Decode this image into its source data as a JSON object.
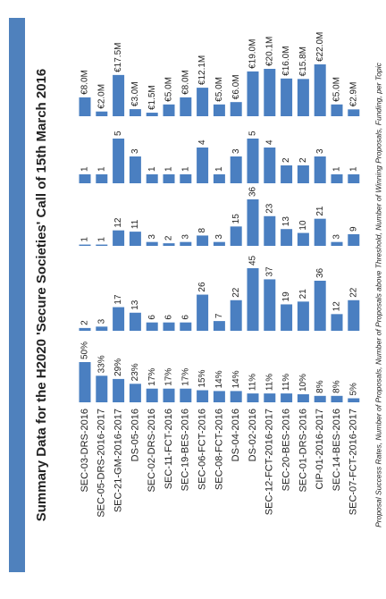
{
  "chart_data": {
    "type": "bar",
    "title": "Summary Data for the H2020 'Secure Societies' Call of 15th March 2016",
    "caption": "Proposal Success Rates, Number of Proposals, Number of Proposals above Threshold, Number of Winning Proposals, Funding, per Topic",
    "categories": [
      "SEC-03-DRS-2016",
      "SEC-05-DRS-2016-2017",
      "SEC-21-GM-2016-2017",
      "DS-05-2016",
      "SEC-02-DRS-2016",
      "SEC-11-FCT-2016",
      "SEC-19-BES-2016",
      "SEC-06-FCT-2016",
      "SEC-08-FCT-2016",
      "DS-04-2016",
      "DS-02-2016",
      "SEC-12-FCT-2016-2017",
      "SEC-20-BES-2016",
      "SEC-01-DRS-2016",
      "CIP-01-2016-2017",
      "SEC-14-BES-2016",
      "SEC-07-FCT-2016-2017"
    ],
    "series": [
      {
        "color": "#4a7fc1",
        "values": [
          50,
          33,
          29,
          23,
          17,
          17,
          17,
          15,
          14,
          14,
          11,
          11,
          11,
          10,
          8,
          8,
          5
        ],
        "value_labels": [
          "50%",
          "33%",
          "29%",
          "23%",
          "17%",
          "17%",
          "17%",
          "15%",
          "14%",
          "14%",
          "11%",
          "11%",
          "11%",
          "10%",
          "8%",
          "8%",
          "5%"
        ]
      },
      {
        "color": "#4a7fc1",
        "values": [
          2,
          3,
          17,
          13,
          6,
          6,
          6,
          26,
          7,
          22,
          45,
          37,
          19,
          21,
          36,
          12,
          22
        ]
      },
      {
        "color": "#4a7fc1",
        "values": [
          1,
          1,
          12,
          11,
          3,
          2,
          3,
          8,
          3,
          15,
          36,
          23,
          13,
          10,
          21,
          3,
          9
        ]
      },
      {
        "color": "#4a7fc1",
        "values": [
          1,
          1,
          5,
          3,
          1,
          1,
          1,
          4,
          1,
          3,
          5,
          4,
          2,
          2,
          3,
          1,
          1
        ]
      },
      {
        "color": "#4a7fc1",
        "values": [
          8.0,
          2.0,
          17.5,
          3.0,
          1.5,
          5.0,
          8.0,
          12.1,
          5.0,
          6.0,
          19.0,
          20.1,
          16.0,
          15.8,
          22.0,
          5.0,
          2.9
        ],
        "value_labels": [
          "€8.0M",
          "€2.0M",
          "€17.5M",
          "€3.0M",
          "€1.5M",
          "€5.0M",
          "€8.0M",
          "€12.1M",
          "€5.0M",
          "€6.0M",
          "€19.0M",
          "€20.1M",
          "€16.0M",
          "€15.8M",
          "€22.0M",
          "€5.0M",
          "€2.9M"
        ]
      }
    ]
  }
}
